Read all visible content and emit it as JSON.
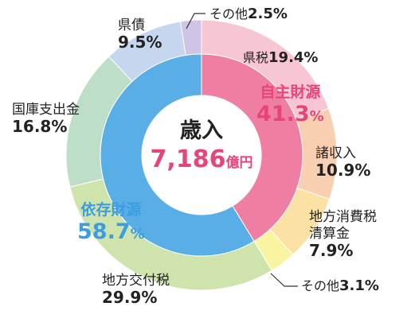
{
  "chart_data": {
    "type": "pie",
    "center": {
      "title": "歳入",
      "value": "7,186",
      "unit": "億円"
    },
    "outer_ring": [
      {
        "label": "県税",
        "value": 19.4,
        "color": "#f7c6d2"
      },
      {
        "label": "諸収入",
        "value": 10.9,
        "color": "#f9cfb2"
      },
      {
        "label": "地方消費税清算金",
        "label_lines": [
          "地方消費税",
          "清算金"
        ],
        "value": 7.9,
        "color": "#fbe2a4"
      },
      {
        "label": "その他",
        "value": 3.1,
        "color": "#f8f4a0"
      },
      {
        "label": "地方交付税",
        "value": 29.9,
        "color": "#cfe3ad"
      },
      {
        "label": "国庫支出金",
        "value": 16.8,
        "color": "#bedfc7"
      },
      {
        "label": "県債",
        "value": 9.5,
        "color": "#c6d6ef"
      },
      {
        "label": "その他",
        "value": 2.5,
        "color": "#cfc3e6"
      }
    ],
    "inner_ring": [
      {
        "label": "自主財源",
        "value": 41.3,
        "color": "#ee7fa2",
        "text_color": "#e6457a"
      },
      {
        "label": "依存財源",
        "value": 58.7,
        "color": "#5aaee6",
        "text_color": "#3b9de0"
      }
    ],
    "unit": "%"
  }
}
